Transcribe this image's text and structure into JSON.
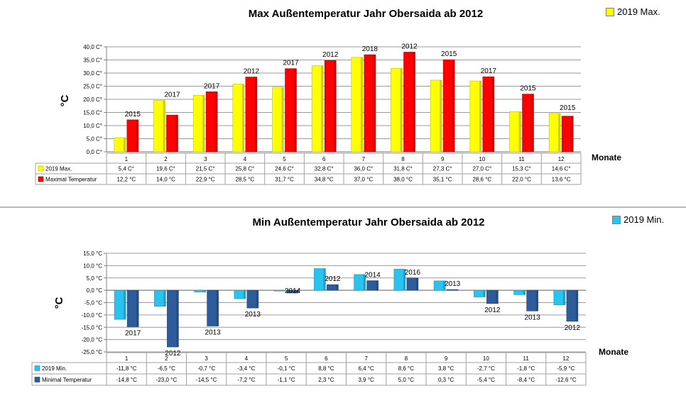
{
  "months_label": "Monate",
  "charts": [
    {
      "id": "max",
      "title": "Max Außentemperatur Jahr Obersaida ab 2012",
      "ylabel": "°C",
      "xlabel": "Monate",
      "legend_top": "2019 Max.",
      "colors": {
        "current": "#FFFF00",
        "record": "#FF0000"
      },
      "table_rows": [
        {
          "label": "2019 Max.",
          "cells": [
            "5,4 C°",
            "19,6 C°",
            "21,5 C°",
            "25,8 C°",
            "24,6 C°",
            "32,8 C°",
            "36,0 C°",
            "31,8 C°",
            "27,3 C°",
            "27,0 C°",
            "15,3 C°",
            "14,6 C°"
          ]
        },
        {
          "label": "Maximal Temperatur",
          "cells": [
            "12,2 °C",
            "14,0 °C",
            "22,9 °C",
            "28,5 °C",
            "31,7 °C",
            "34,8 °C",
            "37,0 °C",
            "38,0 °C",
            "35,1 °C",
            "28,6 °C",
            "22,0 °C",
            "13,6 °C"
          ]
        }
      ]
    },
    {
      "id": "min",
      "title": "Min  Außentemperatur Jahr Obersaida ab 2012",
      "ylabel": "°C",
      "xlabel": "Monate",
      "legend_top": "2019 Min.",
      "colors": {
        "current": "#29C3F0",
        "record": "#2E5C9A"
      },
      "table_rows": [
        {
          "label": "2019 Min.",
          "cells": [
            "-11,8 °C",
            "-6,5 °C",
            "-0,7 °C",
            "-3,4 °C",
            "-0,1 °C",
            "8,8 °C",
            "6,4 °C",
            "8,6 °C",
            "3,8 °C",
            "-2,7 °C",
            "-1,8 °C",
            "-5,9 °C"
          ]
        },
        {
          "label": "Minimal Temperatur",
          "cells": [
            "-14,8 °C",
            "-23,0 °C",
            "-14,5 °C",
            "-7,2 °C",
            "-1,1 °C",
            "2,3 °C",
            "3,9 °C",
            "5,0 °C",
            "0,3 °C",
            "-5,4 °C",
            "-8,4 °C",
            "-12,6 °C"
          ]
        }
      ]
    }
  ],
  "chart_data": [
    {
      "type": "bar",
      "title": "Max Außentemperatur Jahr Obersaida ab 2012",
      "xlabel": "Monate",
      "ylabel": "°C",
      "categories": [
        "1",
        "2",
        "3",
        "4",
        "5",
        "6",
        "7",
        "8",
        "9",
        "10",
        "11",
        "12"
      ],
      "ylim": [
        0,
        40
      ],
      "yticks": [
        "0,0 C°",
        "5,0 C°",
        "10,0 C°",
        "15,0 C°",
        "20,0 C°",
        "25,0 C°",
        "30,0 C°",
        "35,0 C°",
        "40,0 C°"
      ],
      "grid": true,
      "legend": "top-right",
      "series": [
        {
          "name": "2019 Max.",
          "values": [
            5.4,
            19.6,
            21.5,
            25.8,
            24.6,
            32.8,
            36.0,
            31.8,
            27.3,
            27.0,
            15.3,
            14.6
          ]
        },
        {
          "name": "Maximal Temperatur",
          "values": [
            12.2,
            14.0,
            22.9,
            28.5,
            31.7,
            34.8,
            37.0,
            38.0,
            35.1,
            28.6,
            22.0,
            13.6
          ],
          "year_labels": [
            "2015",
            "2017",
            "2017",
            "2012",
            "2017",
            "2012",
            "2018",
            "2012",
            "2015",
            "2017",
            "2015",
            "2015"
          ]
        }
      ]
    },
    {
      "type": "bar",
      "title": "Min  Außentemperatur Jahr Obersaida ab 2012",
      "xlabel": "Monate",
      "ylabel": "°C",
      "categories": [
        "1",
        "2",
        "3",
        "4",
        "5",
        "6",
        "7",
        "8",
        "9",
        "10",
        "11",
        "12"
      ],
      "ylim": [
        -25,
        15
      ],
      "yticks": [
        "-25,0 °C",
        "-20,0 °C",
        "-15,0 °C",
        "-10,0 °C",
        "-5,0 °C",
        "0,0 °C",
        "5,0 °C",
        "10,0 °C",
        "15,0 °C"
      ],
      "grid": true,
      "legend": "top-right",
      "series": [
        {
          "name": "2019 Min.",
          "values": [
            -11.8,
            -6.5,
            -0.7,
            -3.4,
            -0.1,
            8.8,
            6.4,
            8.6,
            3.8,
            -2.7,
            -1.8,
            -5.9
          ]
        },
        {
          "name": "Minimal Temperatur",
          "values": [
            -14.8,
            -23.0,
            -14.5,
            -7.2,
            -1.1,
            2.3,
            3.9,
            5.0,
            0.3,
            -5.4,
            -8.4,
            -12.6
          ],
          "year_labels": [
            "2017",
            "2012",
            "2013",
            "2013",
            "2014",
            "2012",
            "2014",
            "2016",
            "2013",
            "2012",
            "2013",
            "2012"
          ]
        }
      ]
    }
  ]
}
